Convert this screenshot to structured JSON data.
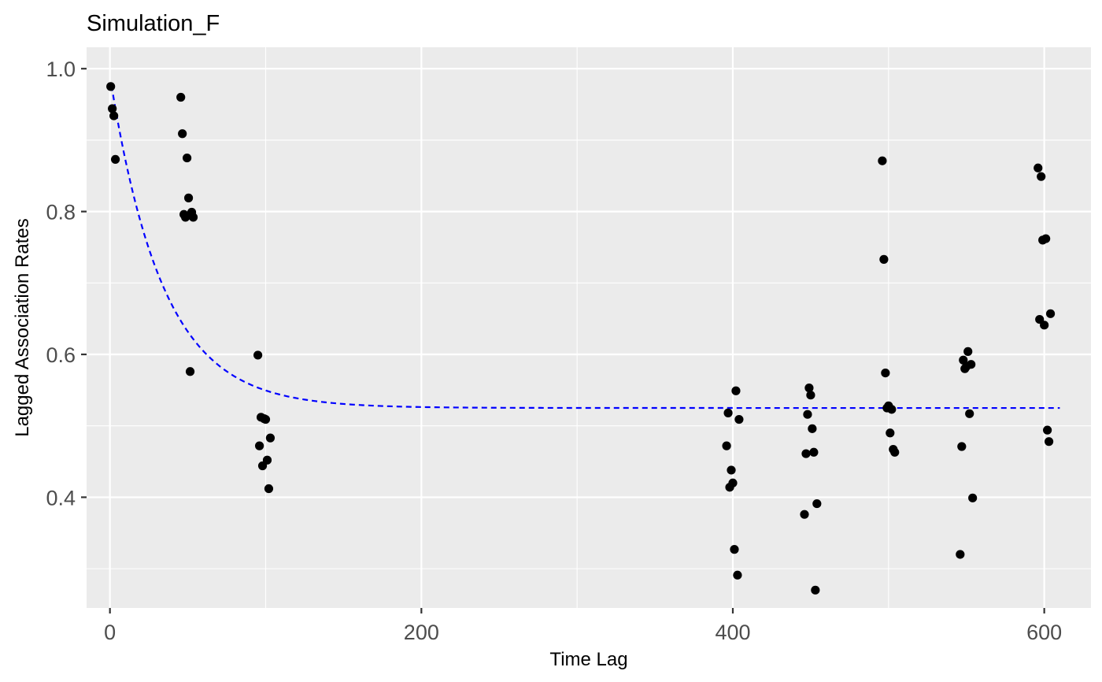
{
  "chart_data": {
    "type": "scatter",
    "title": "Simulation_F",
    "xlabel": "Time Lag",
    "ylabel": "Lagged Association Rates",
    "xlim": [
      -15,
      630
    ],
    "ylim": [
      0.245,
      1.03
    ],
    "x_ticks": [
      0,
      200,
      400,
      600
    ],
    "x_tick_labels": [
      "0",
      "200",
      "400",
      "600"
    ],
    "x_minor_ticks": [
      100,
      300,
      500
    ],
    "y_ticks": [
      0.4,
      0.6,
      0.8,
      1.0
    ],
    "y_tick_labels": [
      "0.4",
      "0.6",
      "0.8",
      "1.0"
    ],
    "y_minor_ticks": [
      0.3,
      0.5,
      0.7,
      0.9
    ],
    "grid": true,
    "legend": "none",
    "colors": {
      "panel_background": "#ebebeb",
      "grid": "#ffffff",
      "points": "#000000",
      "fit_line": "#0000ff"
    },
    "series": [
      {
        "type": "scatter",
        "points": [
          [
            0.5,
            0.975
          ],
          [
            1.5,
            0.944
          ],
          [
            2.5,
            0.934
          ],
          [
            3.5,
            0.873
          ],
          [
            45.5,
            0.96
          ],
          [
            46.5,
            0.909
          ],
          [
            47.5,
            0.796
          ],
          [
            48.5,
            0.792
          ],
          [
            49.5,
            0.875
          ],
          [
            50.5,
            0.819
          ],
          [
            51.5,
            0.576
          ],
          [
            52.5,
            0.799
          ],
          [
            53.5,
            0.792
          ],
          [
            95,
            0.599
          ],
          [
            96,
            0.472
          ],
          [
            97,
            0.512
          ],
          [
            98,
            0.444
          ],
          [
            99,
            0.51
          ],
          [
            100,
            0.509
          ],
          [
            101,
            0.452
          ],
          [
            102,
            0.412
          ],
          [
            103,
            0.483
          ],
          [
            396,
            0.472
          ],
          [
            397,
            0.518
          ],
          [
            398,
            0.414
          ],
          [
            399,
            0.438
          ],
          [
            400,
            0.42
          ],
          [
            401,
            0.327
          ],
          [
            402,
            0.549
          ],
          [
            403,
            0.291
          ],
          [
            404,
            0.509
          ],
          [
            446,
            0.376
          ],
          [
            447,
            0.461
          ],
          [
            448,
            0.516
          ],
          [
            449,
            0.553
          ],
          [
            450,
            0.543
          ],
          [
            451,
            0.496
          ],
          [
            452,
            0.463
          ],
          [
            453,
            0.27
          ],
          [
            454,
            0.391
          ],
          [
            496,
            0.871
          ],
          [
            497,
            0.733
          ],
          [
            498,
            0.574
          ],
          [
            499,
            0.525
          ],
          [
            500,
            0.528
          ],
          [
            501,
            0.49
          ],
          [
            502,
            0.523
          ],
          [
            503,
            0.467
          ],
          [
            504,
            0.463
          ],
          [
            546,
            0.32
          ],
          [
            547,
            0.471
          ],
          [
            548,
            0.592
          ],
          [
            549,
            0.58
          ],
          [
            550,
            0.583
          ],
          [
            551,
            0.604
          ],
          [
            552,
            0.517
          ],
          [
            553,
            0.586
          ],
          [
            554,
            0.399
          ],
          [
            596,
            0.861
          ],
          [
            597,
            0.649
          ],
          [
            598,
            0.849
          ],
          [
            599,
            0.76
          ],
          [
            600,
            0.641
          ],
          [
            601,
            0.762
          ],
          [
            602,
            0.494
          ],
          [
            603,
            0.478
          ],
          [
            604,
            0.657
          ]
        ]
      },
      {
        "type": "line",
        "style": "dashed",
        "function": "a + b * exp(-x / c)",
        "params": {
          "a": 0.525,
          "b": 0.465,
          "c": 34
        },
        "x_range": [
          1,
          610
        ]
      }
    ]
  }
}
